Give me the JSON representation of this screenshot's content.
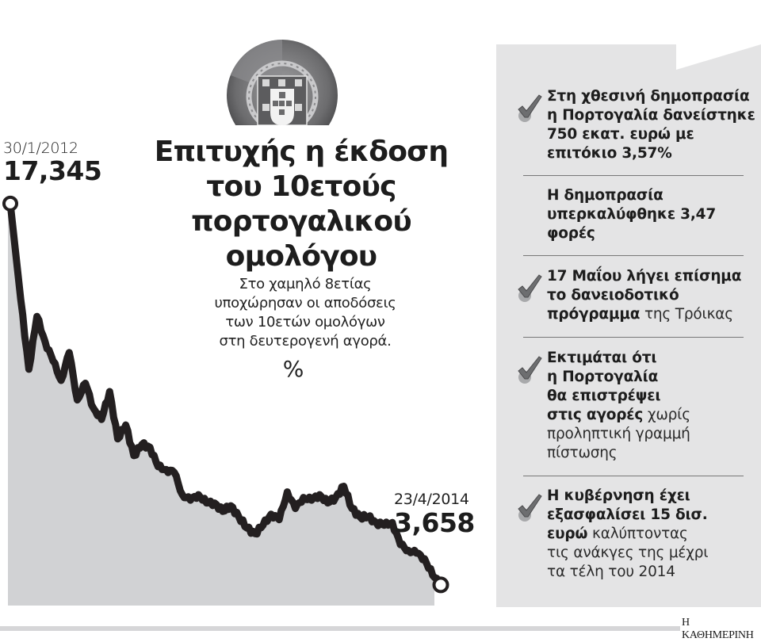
{
  "title_lines": [
    "Επιτυχής η έκδοση",
    "του 10ετούς",
    "πορτογαλικού",
    "ομολόγου"
  ],
  "subtitle_lines": [
    "Στο χαμηλό 8ετίας",
    "υποχώρησαν οι αποδόσεις",
    "των 10ετών ομολόγων",
    "στη δευτερογενή αγορά."
  ],
  "unit": "%",
  "start": {
    "date": "30/1/2012",
    "value": "17,345"
  },
  "end": {
    "date": "23/4/2014",
    "value": "3,658"
  },
  "emblem": {
    "icon": "portugal-coat-of-arms-icon"
  },
  "panel": {
    "items": [
      {
        "checked": true,
        "bold": "Στη χθεσινή δημοπρασία η Πορτογαλία δανείστηκε 750 εκατ. ευρώ με επιτόκιο 3,57%",
        "light": "",
        "lines": [
          [
            "Στη χθεσινή δημοπρασία",
            ""
          ],
          [
            "η Πορτογαλία δανείστηκε",
            ""
          ],
          [
            "750 εκατ. ευρώ με",
            ""
          ],
          [
            "επιτόκιο 3,57%",
            ""
          ]
        ]
      },
      {
        "checked": false,
        "bold": "Η δημοπρασία υπερκαλύφθηκε 3,47 φορές",
        "light": "",
        "lines": [
          [
            "Η δημοπρασία",
            ""
          ],
          [
            "υπερκαλύφθηκε 3,47",
            ""
          ],
          [
            "φορές",
            ""
          ]
        ]
      },
      {
        "checked": true,
        "bold": "17 Μαΐου λήγει επίσημα το δανειοδοτικό πρόγραμμα",
        "light": "της Τρόικας",
        "lines": [
          [
            "17 Μαΐου λήγει επίσημα",
            ""
          ],
          [
            "το δανειοδοτικό",
            ""
          ],
          [
            "πρόγραμμα",
            " της Τρόικας"
          ]
        ]
      },
      {
        "checked": true,
        "bold": "Εκτιμάται ότι η Πορτογαλία θα επιστρέψει στις αγορές",
        "light": "χωρίς προληπτική γραμμή πίστωσης",
        "lines": [
          [
            "Εκτιμάται ότι",
            ""
          ],
          [
            "η Πορτογαλία",
            ""
          ],
          [
            "θα επιστρέψει",
            ""
          ],
          [
            "στις αγορές",
            " χωρίς"
          ],
          [
            "",
            "προληπτική γραμμή"
          ],
          [
            "",
            "πίστωσης"
          ]
        ]
      },
      {
        "checked": true,
        "bold": "Η κυβέρνηση έχει εξασφαλίσει 15 δισ. ευρώ",
        "light": "καλύπτοντας τις ανάκγες της μέχρι τα τέλη του 2014",
        "lines": [
          [
            "Η κυβέρνηση έχει",
            ""
          ],
          [
            "εξασφαλίσει 15 δισ.",
            ""
          ],
          [
            "ευρώ",
            " καλύπτοντας"
          ],
          [
            "",
            "τις ανάκγες της μέχρι"
          ],
          [
            "",
            "τα τέλη του 2014"
          ]
        ]
      }
    ]
  },
  "footer": {
    "brand": "Η ΚΑΘΗΜΕΡΙΝΗ"
  },
  "colors": {
    "line": "#231f20",
    "fill": "#d1d2d4",
    "panel": "#e4e4e5",
    "check": "#6d6e70",
    "check_shadow": "#a8a9ab"
  },
  "chart_data": {
    "type": "area",
    "title": "Επιτυχής η έκδοση του 10ετούς πορτογαλικού ομολόγου",
    "subtitle": "Στο χαμηλό 8ετίας υποχώρησαν οι αποδόσεις των 10ετών ομολόγων στη δευτερογενή αγορά.",
    "ylabel": "%",
    "xlabel": "",
    "x_range": [
      "30/1/2012",
      "23/4/2014"
    ],
    "grid": false,
    "legend": "none",
    "annotations": [
      {
        "x": "30/1/2012",
        "y": 17.345,
        "label": "17,345"
      },
      {
        "x": "23/4/2014",
        "y": 3.658,
        "label": "3,658"
      }
    ],
    "ylim_approx": [
      2.9,
      17.5
    ],
    "x": [
      "2012-01-30",
      "2012-02-20",
      "2012-03-10",
      "2012-03-20",
      "2012-04-01",
      "2012-04-15",
      "2012-05-01",
      "2012-05-15",
      "2012-06-01",
      "2012-06-15",
      "2012-07-01",
      "2012-07-15",
      "2012-08-01",
      "2012-08-15",
      "2012-09-01",
      "2012-09-15",
      "2012-10-01",
      "2012-10-15",
      "2012-11-01",
      "2012-11-15",
      "2012-12-01",
      "2012-12-15",
      "2013-01-01",
      "2013-01-15",
      "2013-02-01",
      "2013-02-15",
      "2013-03-01",
      "2013-03-15",
      "2013-04-01",
      "2013-04-15",
      "2013-05-01",
      "2013-05-15",
      "2013-06-01",
      "2013-06-15",
      "2013-07-01",
      "2013-07-15",
      "2013-08-01",
      "2013-08-15",
      "2013-09-01",
      "2013-09-15",
      "2013-10-01",
      "2013-10-15",
      "2013-11-01",
      "2013-11-15",
      "2013-12-01",
      "2013-12-15",
      "2014-01-01",
      "2014-01-15",
      "2014-02-01",
      "2014-02-15",
      "2014-03-01",
      "2014-03-15",
      "2014-04-01",
      "2014-04-23"
    ],
    "values": [
      17.35,
      13.9,
      11.4,
      13.3,
      12.4,
      11.7,
      11.0,
      12.0,
      10.3,
      10.9,
      10.0,
      9.6,
      10.6,
      8.9,
      9.4,
      8.3,
      8.7,
      8.6,
      7.9,
      7.8,
      7.7,
      6.9,
      6.7,
      6.9,
      6.6,
      6.6,
      6.3,
      6.5,
      6.1,
      5.7,
      5.5,
      5.8,
      6.2,
      6.0,
      7.0,
      6.4,
      6.8,
      6.7,
      6.9,
      6.6,
      6.8,
      7.2,
      6.4,
      6.1,
      6.1,
      5.9,
      5.8,
      5.9,
      5.1,
      4.9,
      4.8,
      4.6,
      4.0,
      3.66
    ]
  }
}
